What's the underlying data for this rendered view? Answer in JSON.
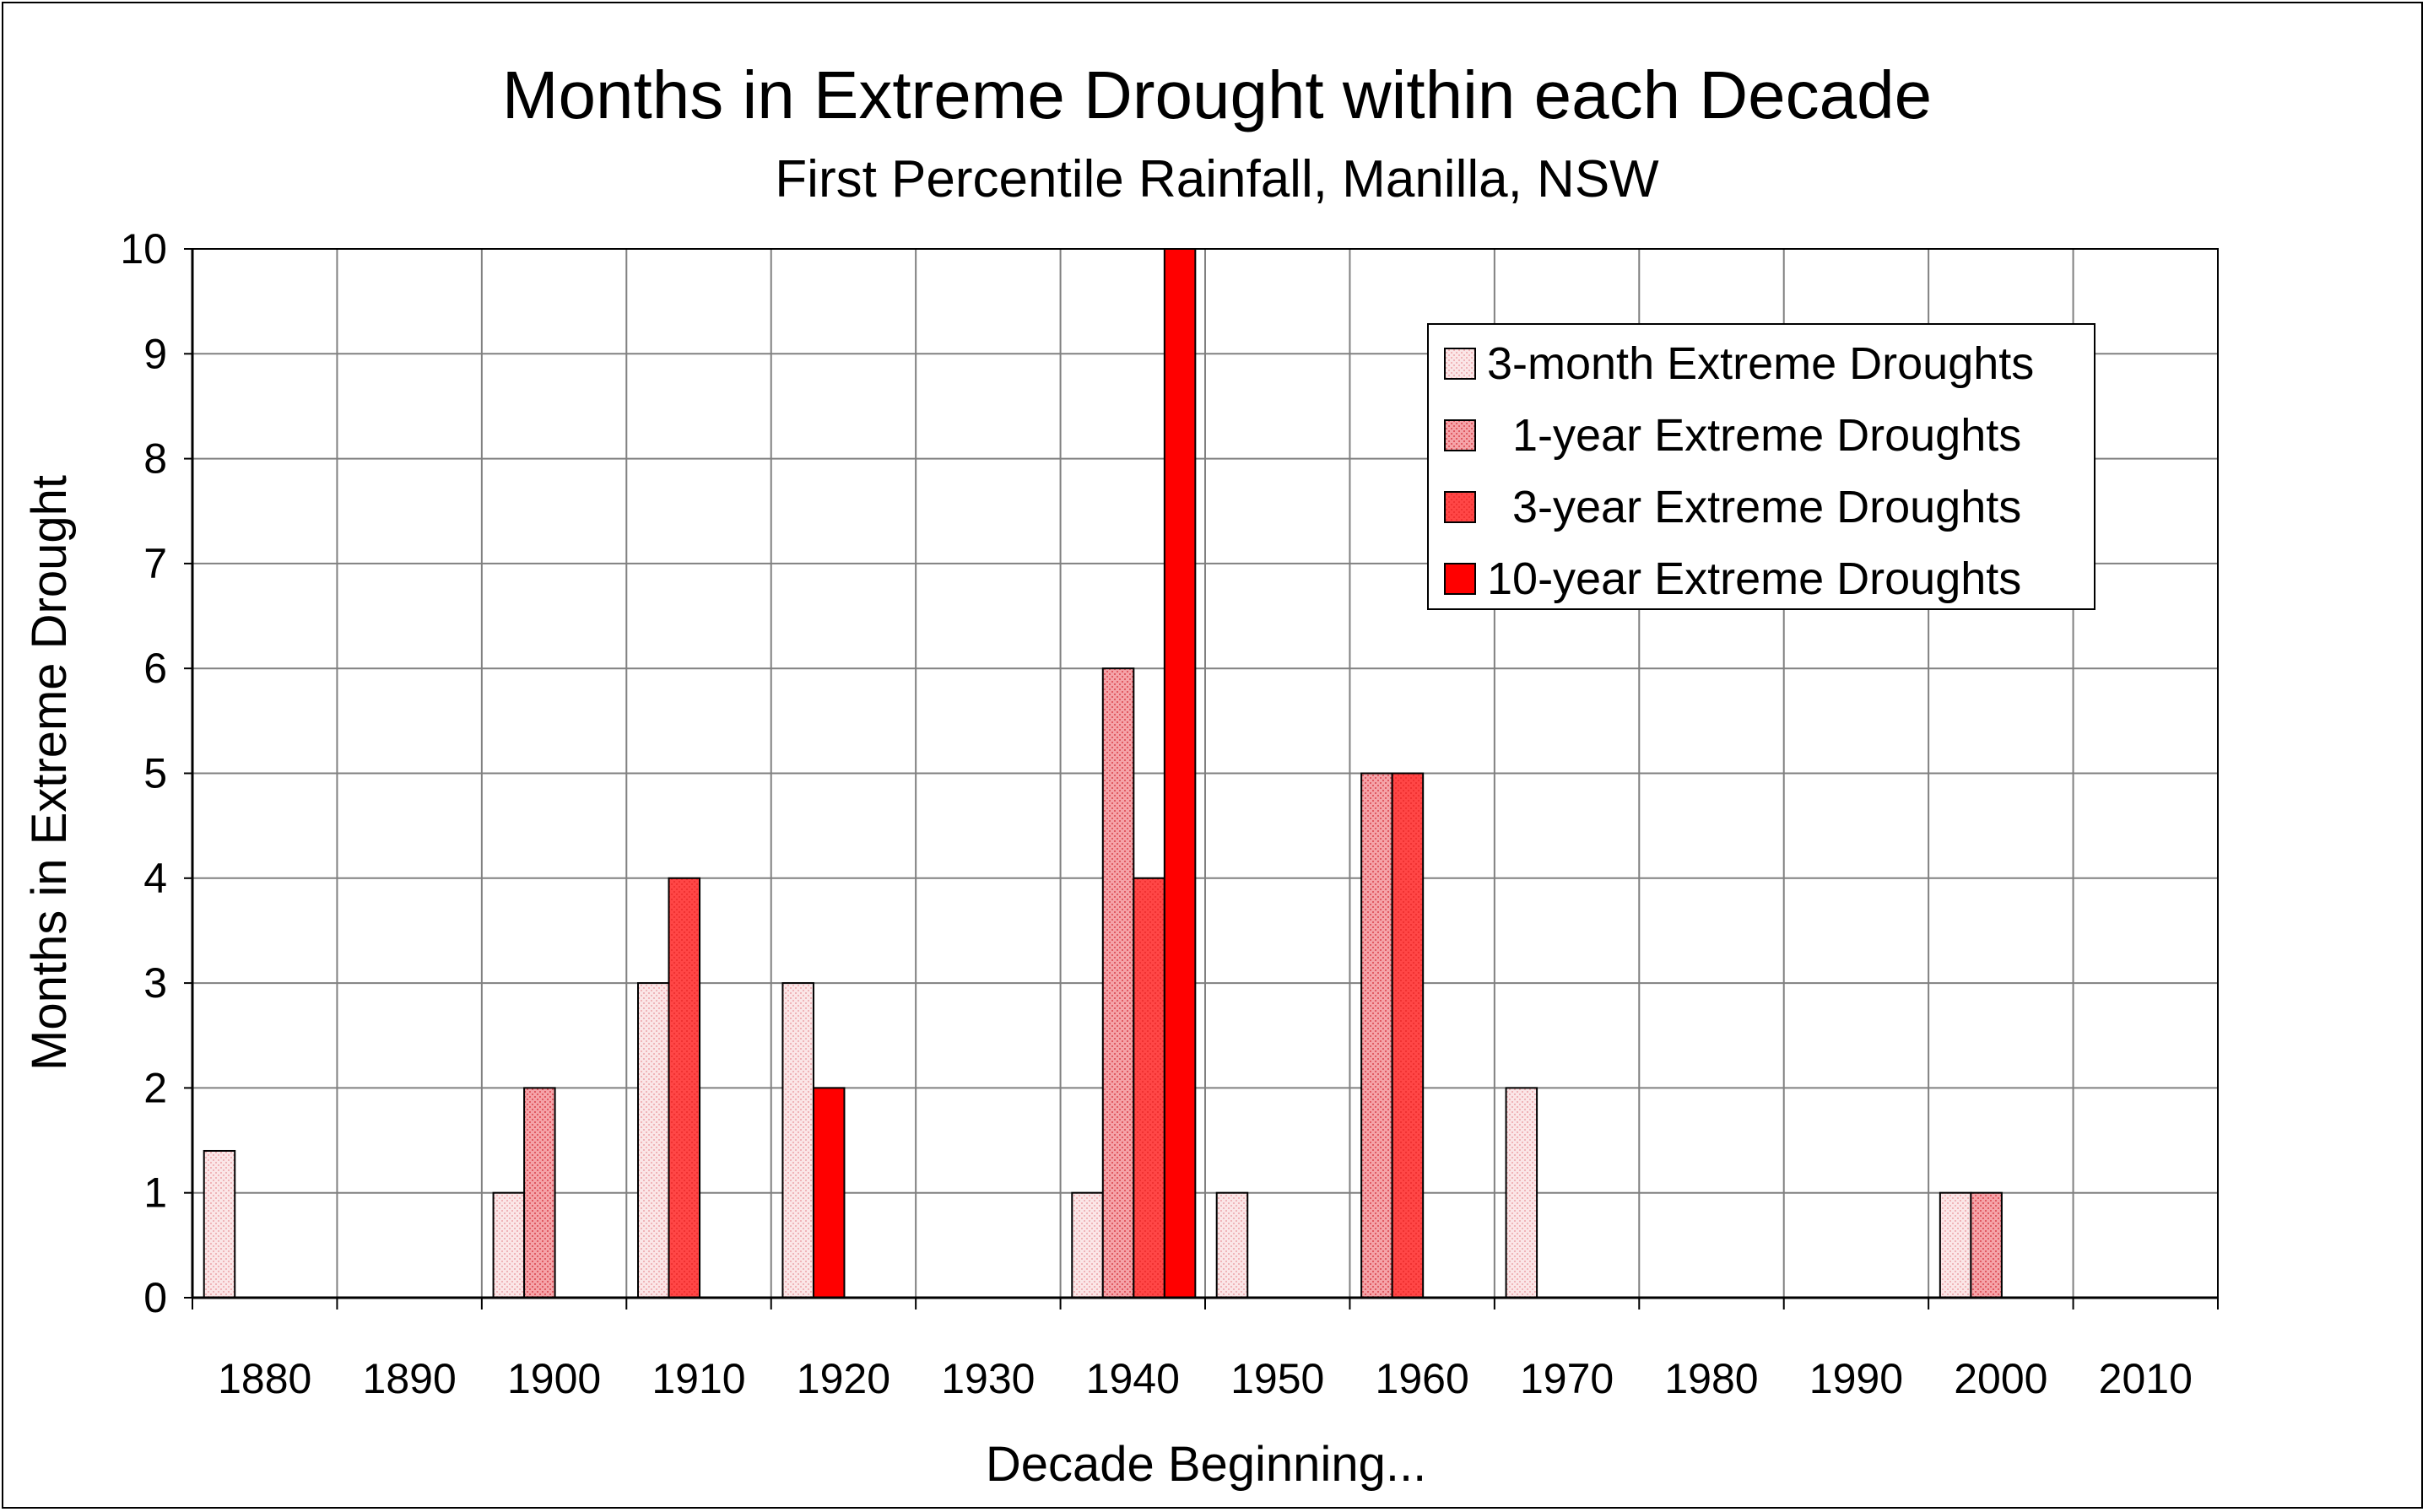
{
  "chart_data": {
    "type": "bar",
    "title": "Months in Extreme Drought within each Decade",
    "subtitle": "First Percentile Rainfall, Manilla, NSW",
    "xlabel": "Decade Beginning...",
    "ylabel": "Months in Extreme Drought",
    "ylim": [
      0,
      10
    ],
    "yticks": [
      "0",
      "1",
      "2",
      "3",
      "4",
      "5",
      "6",
      "7",
      "8",
      "9",
      "10"
    ],
    "categories": [
      "1880",
      "1890",
      "1900",
      "1910",
      "1920",
      "1930",
      "1940",
      "1950",
      "1960",
      "1970",
      "1980",
      "1990",
      "2000",
      "2010"
    ],
    "grid": true,
    "legend_position": "top-right",
    "series": [
      {
        "name": "3-month Extreme Droughts",
        "color": "#F8D8DA",
        "values": [
          1.4,
          0,
          1,
          3,
          3,
          0,
          1,
          1,
          0,
          2,
          0,
          0,
          1,
          0
        ]
      },
      {
        "name": "  1-year Extreme Droughts",
        "color": "#F08E94",
        "values": [
          0,
          0,
          2,
          0,
          0,
          0,
          6,
          0,
          5,
          0,
          0,
          0,
          1,
          0
        ]
      },
      {
        "name": "  3-year Extreme Droughts",
        "color": "#FF4848",
        "values": [
          0,
          0,
          0,
          4,
          0,
          0,
          4,
          0,
          5,
          0,
          0,
          0,
          0,
          0
        ]
      },
      {
        "name": "10-year Extreme Droughts",
        "color": "#FF0000",
        "values": [
          0,
          0,
          0,
          0,
          2,
          0,
          10,
          0,
          0,
          0,
          0,
          0,
          0,
          0
        ]
      }
    ]
  }
}
